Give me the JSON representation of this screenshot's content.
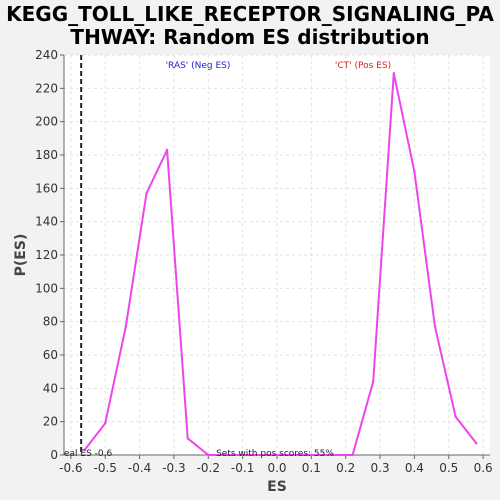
{
  "chart_data": {
    "type": "line",
    "title_lines": [
      "KEGG_TOLL_LIKE_RECEPTOR_SIGNALING_PA",
      "THWAY: Random ES distribution"
    ],
    "xlabel": "ES",
    "ylabel": "P(ES)",
    "xlim": [
      -0.62,
      0.62
    ],
    "ylim": [
      0,
      240
    ],
    "x_ticks": [
      -0.6,
      -0.5,
      -0.4,
      -0.3,
      -0.2,
      -0.1,
      0.0,
      0.1,
      0.2,
      0.3,
      0.4,
      0.5,
      0.6
    ],
    "x_tick_labels": [
      "-0.6",
      "-0.5",
      "-0.4",
      "-0.3",
      "-0.2",
      "-0.1",
      "0.0",
      "0.1",
      "0.2",
      "0.3",
      "0.4",
      "0.5",
      "0.6"
    ],
    "y_ticks": [
      0,
      20,
      40,
      60,
      80,
      100,
      120,
      140,
      160,
      180,
      200,
      220,
      240
    ],
    "y_tick_labels": [
      "0",
      "20",
      "40",
      "60",
      "80",
      "100",
      "120",
      "140",
      "160",
      "180",
      "200",
      "220",
      "240"
    ],
    "grid": true,
    "series": [
      {
        "color": "#ee44ee",
        "points": [
          [
            -0.56,
            3
          ],
          [
            -0.5,
            19
          ],
          [
            -0.44,
            77
          ],
          [
            -0.38,
            157
          ],
          [
            -0.32,
            183
          ],
          [
            -0.26,
            10
          ],
          [
            -0.2,
            0
          ],
          [
            -0.14,
            0
          ],
          [
            -0.08,
            0
          ],
          [
            -0.02,
            0
          ],
          [
            0.04,
            0
          ],
          [
            0.1,
            0
          ],
          [
            0.16,
            0
          ],
          [
            0.22,
            0
          ],
          [
            0.28,
            44
          ],
          [
            0.34,
            229
          ],
          [
            0.4,
            170
          ],
          [
            0.46,
            77
          ],
          [
            0.52,
            23
          ],
          [
            0.58,
            7
          ]
        ]
      }
    ],
    "real_es": -0.57,
    "real_es_label": "eal ES -0.6",
    "neg_label": "'RAS' (Neg ES)",
    "pos_label": "'CT' (Pos ES)",
    "neg_color": "#2222cc",
    "pos_color": "#dd2222",
    "pos_scores_note": "Sets with pos scores: 55%"
  }
}
